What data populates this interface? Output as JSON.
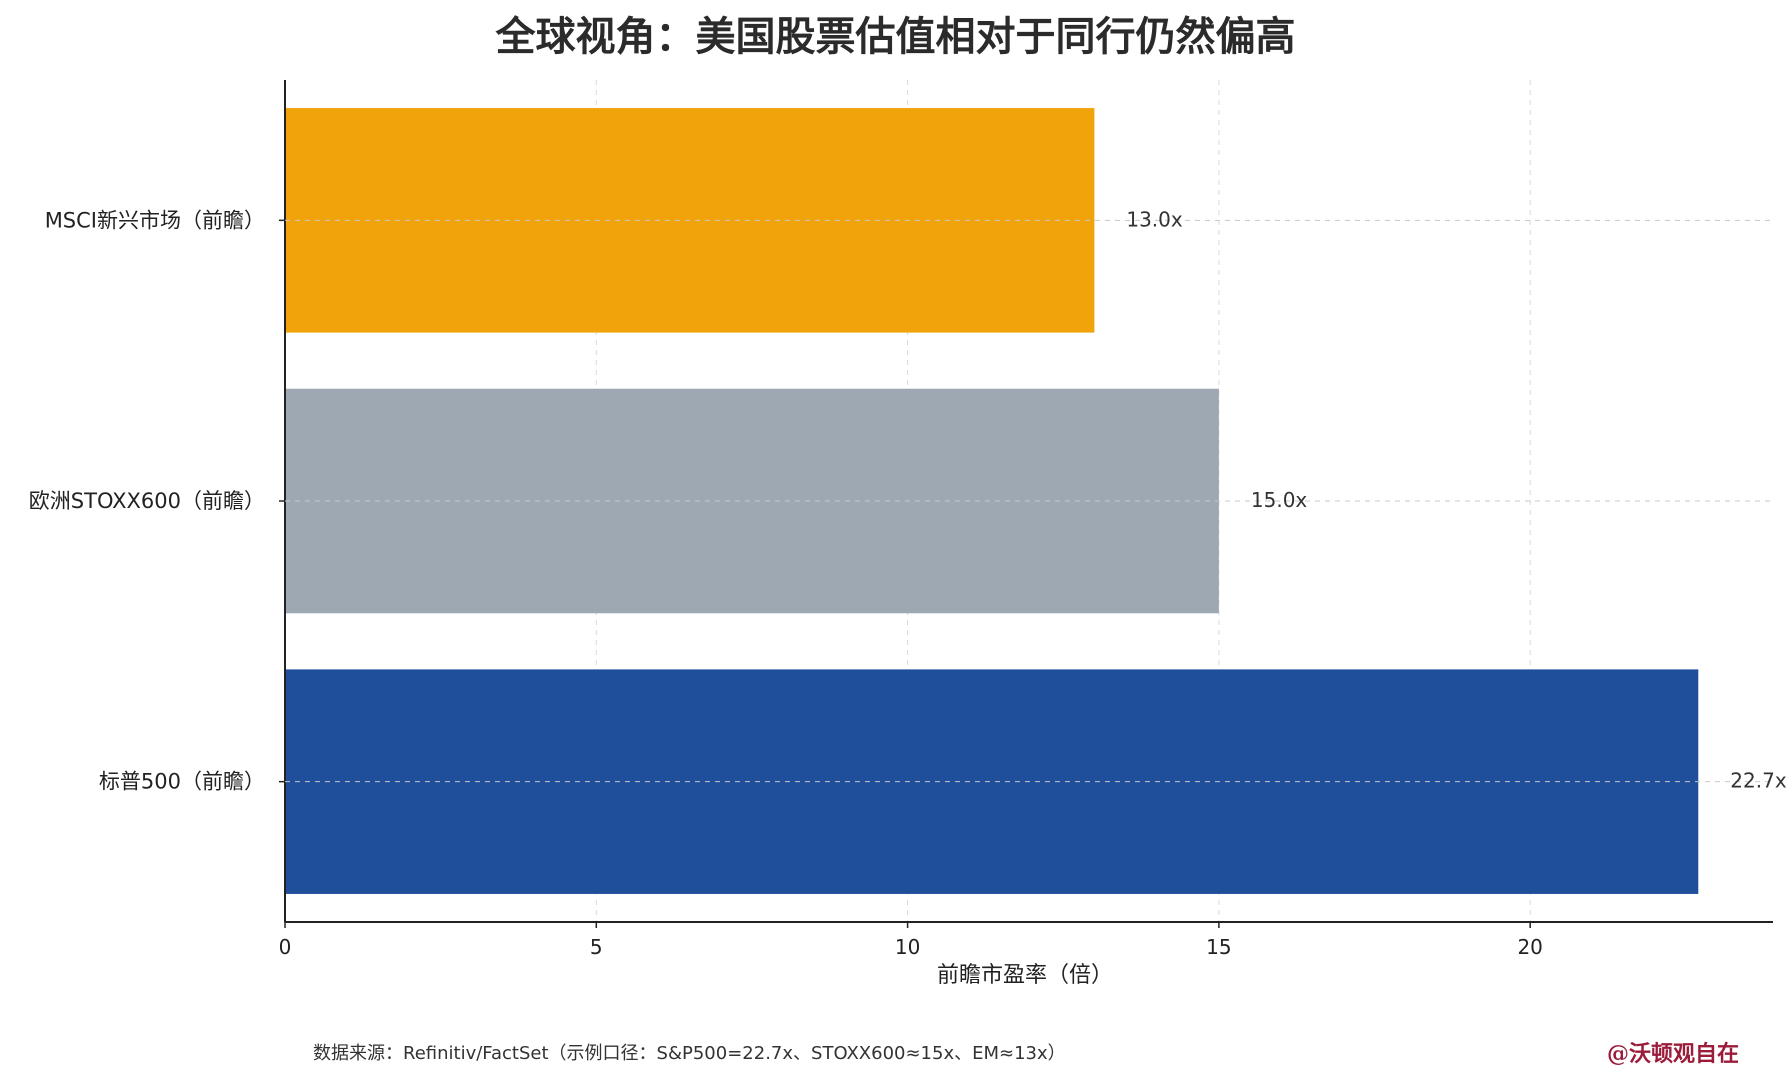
{
  "chart_data": {
    "type": "bar",
    "orientation": "horizontal",
    "title": "全球视角：美国股票估值相对于同行仍然偏高",
    "xlabel": "前瞻市盈率（倍）",
    "ylabel": "",
    "xlim": [
      0,
      23.9
    ],
    "xticks": [
      0,
      5,
      10,
      15,
      20
    ],
    "grid": true,
    "categories": [
      "MSCI新兴市场（前瞻）",
      "欧洲STOXX600（前瞻）",
      "标普500（前瞻）"
    ],
    "values": [
      13.0,
      15.0,
      22.7
    ],
    "value_labels": [
      "13.0x",
      "15.0x",
      "22.7x"
    ],
    "colors": [
      "#f0a30a",
      "#9ea8b2",
      "#1f4e9a"
    ]
  },
  "footer": {
    "source": "数据来源：Refinitiv/FactSet（示例口径：S&P500=22.7x、STOXX600≈15x、EM≈13x）",
    "watermark": "@沃顿观自在",
    "watermark_color": "#9b1c3a"
  }
}
